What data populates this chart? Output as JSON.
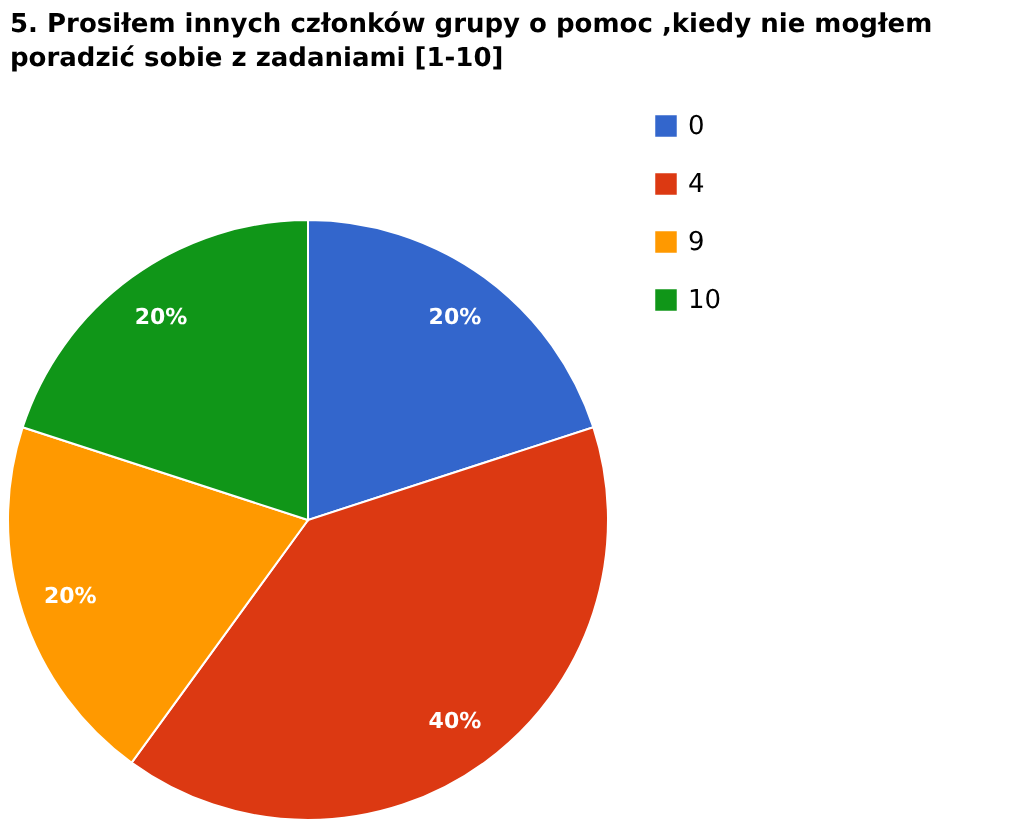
{
  "chart_data": {
    "type": "pie",
    "title": "5. Prosiłem innych członków grupy o pomoc ,kiedy nie mogłem poradzić sobie z zadaniami [1-10]",
    "categories": [
      "0",
      "4",
      "9",
      "10"
    ],
    "values": [
      20,
      40,
      20,
      20
    ],
    "colors": [
      "#3366cc",
      "#dc3912",
      "#ff9900",
      "#109618"
    ],
    "value_labels": [
      "20%",
      "40%",
      "20%",
      "20%"
    ],
    "legend": "top right"
  }
}
